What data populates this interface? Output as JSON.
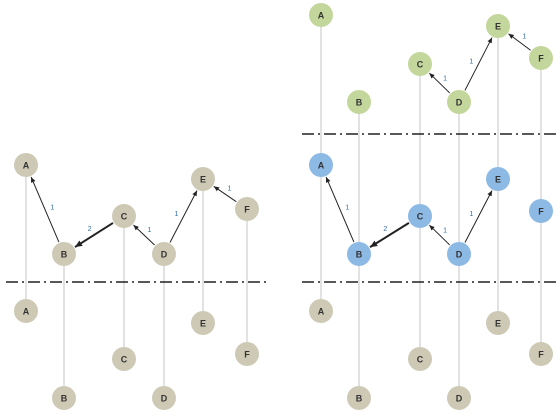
{
  "colors": {
    "gray": "#cdc9b5",
    "green": "#c3d69b",
    "blue": "#8db9e5",
    "line": "#c4c4c4",
    "edge": "#222222",
    "edge_label": "#2f6fa6",
    "divider": "#222222"
  },
  "panels": [
    {
      "id": "left",
      "upper": [
        {
          "label": "A",
          "color": "gray"
        },
        {
          "label": "B",
          "color": "gray"
        },
        {
          "label": "C",
          "color": "gray"
        },
        {
          "label": "D",
          "color": "gray"
        },
        {
          "label": "E",
          "color": "gray"
        },
        {
          "label": "F",
          "color": "gray"
        }
      ],
      "lower": [
        {
          "label": "A",
          "color": "gray"
        },
        {
          "label": "B",
          "color": "gray"
        },
        {
          "label": "C",
          "color": "gray"
        },
        {
          "label": "D",
          "color": "gray"
        },
        {
          "label": "E",
          "color": "gray"
        },
        {
          "label": "F",
          "color": "gray"
        }
      ],
      "edges": [
        {
          "from": "B",
          "to": "A",
          "weight": "1",
          "bold": false
        },
        {
          "from": "C",
          "to": "B",
          "weight": "2",
          "bold": true
        },
        {
          "from": "D",
          "to": "C",
          "weight": "1",
          "bold": false
        },
        {
          "from": "D",
          "to": "E",
          "weight": "1",
          "bold": false
        },
        {
          "from": "F",
          "to": "E",
          "weight": "1",
          "bold": false
        }
      ]
    },
    {
      "id": "right",
      "top": [
        {
          "label": "A",
          "color": "green"
        },
        {
          "label": "B",
          "color": "green"
        },
        {
          "label": "C",
          "color": "green"
        },
        {
          "label": "D",
          "color": "green"
        },
        {
          "label": "E",
          "color": "green"
        },
        {
          "label": "F",
          "color": "green"
        }
      ],
      "upper": [
        {
          "label": "A",
          "color": "blue"
        },
        {
          "label": "B",
          "color": "blue"
        },
        {
          "label": "C",
          "color": "blue"
        },
        {
          "label": "D",
          "color": "blue"
        },
        {
          "label": "E",
          "color": "blue"
        },
        {
          "label": "F",
          "color": "blue"
        }
      ],
      "lower": [
        {
          "label": "A",
          "color": "gray"
        },
        {
          "label": "B",
          "color": "gray"
        },
        {
          "label": "C",
          "color": "gray"
        },
        {
          "label": "D",
          "color": "gray"
        },
        {
          "label": "E",
          "color": "gray"
        },
        {
          "label": "F",
          "color": "gray"
        }
      ],
      "edges_top": [
        {
          "from": "D",
          "to": "C",
          "weight": "1",
          "bold": false
        },
        {
          "from": "D",
          "to": "E",
          "weight": "1",
          "bold": false
        },
        {
          "from": "F",
          "to": "E",
          "weight": "1",
          "bold": false
        }
      ],
      "edges_upper": [
        {
          "from": "B",
          "to": "A",
          "weight": "1",
          "bold": false
        },
        {
          "from": "C",
          "to": "B",
          "weight": "2",
          "bold": true
        },
        {
          "from": "D",
          "to": "C",
          "weight": "1",
          "bold": false
        },
        {
          "from": "D",
          "to": "E",
          "weight": "1",
          "bold": false
        }
      ]
    }
  ]
}
